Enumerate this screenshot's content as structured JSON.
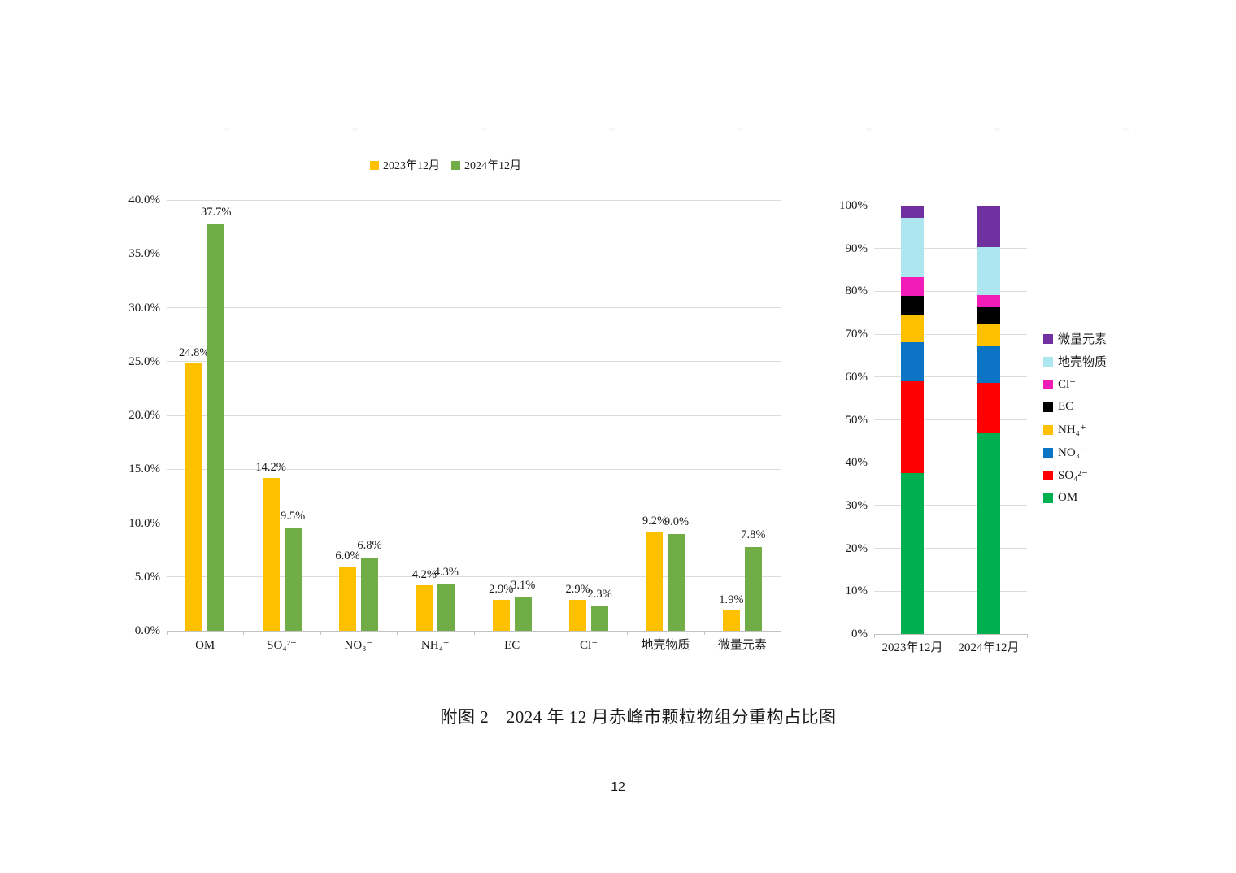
{
  "page": {
    "caption": "附图 2　2024 年 12 月赤峰市颗粒物组分重构占比图",
    "number": "12"
  },
  "chart_data": [
    {
      "type": "bar",
      "title": "",
      "xlabel": "",
      "ylabel": "",
      "categories": [
        "OM",
        "SO₄²⁻",
        "NO₃⁻",
        "NH₄⁺",
        "EC",
        "Cl⁻",
        "地壳物质",
        "微量元素"
      ],
      "series": [
        {
          "name": "2023年12月",
          "color": "#FFC000",
          "values": [
            24.8,
            14.2,
            6.0,
            4.2,
            2.9,
            2.9,
            9.2,
            1.9
          ]
        },
        {
          "name": "2024年12月",
          "color": "#70AD47",
          "values": [
            37.7,
            9.5,
            6.8,
            4.3,
            3.1,
            2.3,
            9.0,
            7.8
          ]
        }
      ],
      "data_label_suffix": "%",
      "ylim": [
        0,
        40
      ],
      "ytick_step": 5,
      "ytick_decimals": 1,
      "grid": true,
      "legend_position": "top"
    },
    {
      "type": "stacked-bar-100",
      "title": "",
      "xlabel": "",
      "ylabel": "",
      "categories": [
        "2023年12月",
        "2024年12月"
      ],
      "series": [
        {
          "name": "OM",
          "color": "#00B050",
          "values": [
            37.5,
            46.8
          ]
        },
        {
          "name": "SO₄²⁻",
          "color": "#FF0000",
          "values": [
            21.5,
            11.8
          ]
        },
        {
          "name": "NO₃⁻",
          "color": "#0C74C4",
          "values": [
            9.1,
            8.5
          ]
        },
        {
          "name": "NH₄⁺",
          "color": "#FFC000",
          "values": [
            6.4,
            5.3
          ]
        },
        {
          "name": "EC",
          "color": "#000000",
          "values": [
            4.4,
            3.9
          ]
        },
        {
          "name": "Cl⁻",
          "color": "#F21CB8",
          "values": [
            4.4,
            2.9
          ]
        },
        {
          "name": "地壳物质",
          "color": "#AEE6F0",
          "values": [
            13.9,
            11.2
          ]
        },
        {
          "name": "微量元素",
          "color": "#7030A0",
          "values": [
            2.8,
            9.6
          ]
        }
      ],
      "legend": [
        {
          "label": "微量元素",
          "color": "#7030A0"
        },
        {
          "label": "地壳物质",
          "color": "#AEE6F0"
        },
        {
          "label": "Cl⁻",
          "color": "#F21CB8"
        },
        {
          "label": "EC",
          "color": "#000000"
        },
        {
          "label": "NH₄⁺",
          "color": "#FFC000"
        },
        {
          "label": "NO₃⁻",
          "color": "#0C74C4"
        },
        {
          "label": "SO₄²⁻",
          "color": "#FF0000"
        },
        {
          "label": "OM",
          "color": "#00B050"
        }
      ],
      "ylim": [
        0,
        100
      ],
      "ytick_step": 10,
      "ytick_decimals": 0,
      "grid": true,
      "legend_position": "right"
    }
  ]
}
